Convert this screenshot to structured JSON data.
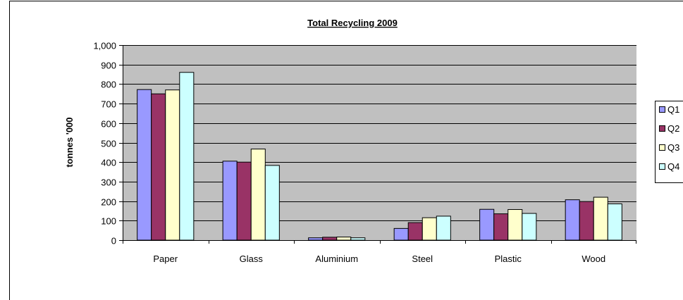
{
  "chart_data": {
    "type": "bar",
    "title": "Total Recycling 2009",
    "xlabel": "",
    "ylabel": "tonnes '000",
    "ylim": [
      0,
      1000
    ],
    "ytick_values": [
      0,
      100,
      200,
      300,
      400,
      500,
      600,
      700,
      800,
      900,
      1000
    ],
    "ytick_labels": [
      "0",
      "100",
      "200",
      "300",
      "400",
      "500",
      "600",
      "700",
      "800",
      "900",
      "1,000"
    ],
    "categories": [
      "Paper",
      "Glass",
      "Aluminium",
      "Steel",
      "Plastic",
      "Wood"
    ],
    "series": [
      {
        "name": "Q1",
        "color": "#9999ff",
        "values": [
          772,
          405,
          12,
          60,
          158,
          207
        ]
      },
      {
        "name": "Q2",
        "color": "#993366",
        "values": [
          750,
          400,
          15,
          90,
          135,
          198
        ]
      },
      {
        "name": "Q3",
        "color": "#ffffcc",
        "values": [
          770,
          467,
          16,
          115,
          157,
          220
        ]
      },
      {
        "name": "Q4",
        "color": "#ccffff",
        "values": [
          860,
          383,
          12,
          123,
          137,
          186
        ]
      }
    ],
    "grid": true,
    "legend_position": "right",
    "plot_background": "#c0c0c0"
  }
}
